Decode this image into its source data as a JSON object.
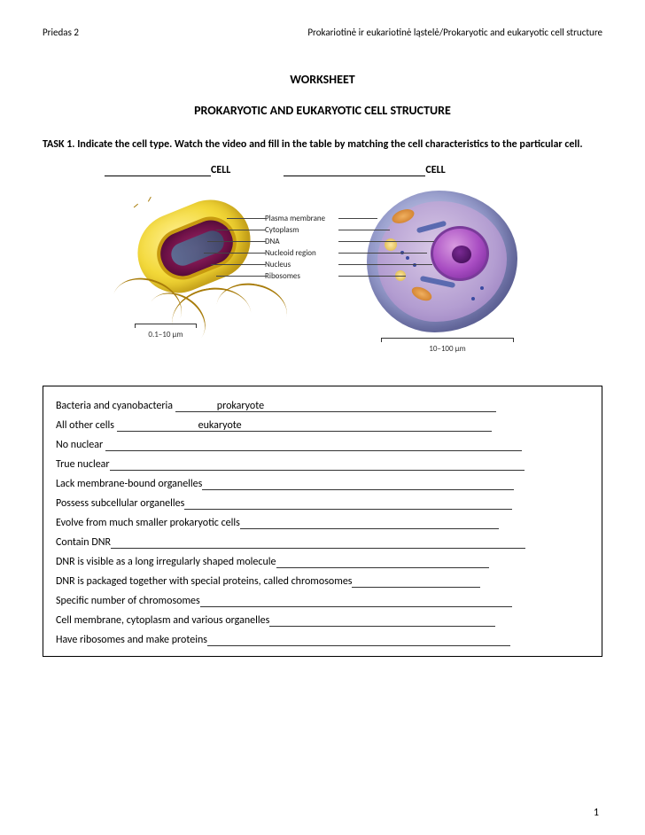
{
  "header": {
    "left": "Priedas 2",
    "right": "Prokariotinė ir eukariotinė ląstelė/Prokaryotic and eukaryotic cell structure"
  },
  "title1": "WORKSHEET",
  "title2": "PROKARYOTIC AND EUKARYOTIC CELL STRUCTURE",
  "task": "TASK 1. Indicate the cell type. Watch the video and fill in the table by matching the cell characteristics to the particular cell.",
  "cell_label": "CELL",
  "diagram": {
    "labels": [
      "Plasma membrane",
      "Cytoplasm",
      "DNA",
      "Nucleoid region",
      "Nucleus",
      "Ribosomes"
    ],
    "scale_left": "0.1–10 µm",
    "scale_right": "10–100 µm",
    "colors": {
      "prokaryote_outer": "#f3d93a",
      "prokaryote_inner": "#6e1147",
      "dna": "#3a4f70",
      "flagellum": "#a87c0a",
      "eukaryote_membrane": "#6a6fa8",
      "eukaryote_cyto": "#b39dd1",
      "nucleus": "#a84cc2",
      "nucleolus": "#3a0a4e",
      "mitochondrion": "#c97420",
      "vesicle": "#d6b040",
      "er": "#5a6ab0",
      "ribosome": "#3a4aa0"
    }
  },
  "lines": [
    {
      "prefix": "Bacteria and cyanobacteria ",
      "lead": 45,
      "answer": "prokaryote",
      "tail": 260
    },
    {
      "prefix": "All other cells ",
      "lead": 90,
      "answer": "eukaryote",
      "tail": 280
    },
    {
      "prefix": "No nuclear ",
      "lead": 0,
      "answer": "",
      "tail": 470
    },
    {
      "prefix": "True nuclear",
      "lead": 0,
      "answer": "",
      "tail": 468
    },
    {
      "prefix": "Lack membrane-bound organelles",
      "lead": 0,
      "answer": "",
      "tail": 352
    },
    {
      "prefix": "Possess subcellular organelles",
      "lead": 0,
      "answer": "",
      "tail": 370
    },
    {
      "prefix": "Evolve from much smaller prokaryotic cells",
      "lead": 0,
      "answer": "",
      "tail": 292
    },
    {
      "prefix": "Contain DNR",
      "lead": 0,
      "answer": "",
      "tail": 468
    },
    {
      "prefix": "DNR is visible as a long irregularly shaped molecule",
      "lead": 0,
      "answer": "",
      "tail": 240
    },
    {
      "prefix": "DNR is packaged together with special proteins, called chromosomes",
      "lead": 0,
      "answer": "",
      "tail": 145
    },
    {
      "prefix": "Specific number of chromosomes",
      "lead": 0,
      "answer": "",
      "tail": 352
    },
    {
      "prefix": "Cell membrane, cytoplasm and various organelles",
      "lead": 0,
      "answer": "",
      "tail": 255
    },
    {
      "prefix": "Have ribosomes and make proteins",
      "lead": 0,
      "answer": "",
      "tail": 342
    }
  ],
  "page_number": "1"
}
